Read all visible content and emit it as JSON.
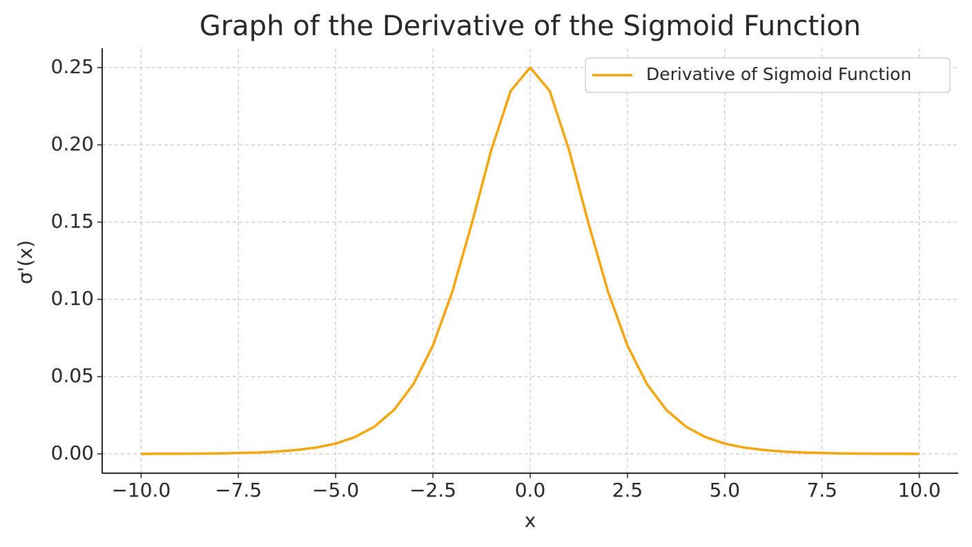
{
  "chart_data": {
    "type": "line",
    "title": "Graph of the Derivative of the Sigmoid Function",
    "xlabel": "x",
    "ylabel": "σ'(x)",
    "x": [
      -10,
      -9.5,
      -9,
      -8.5,
      -8,
      -7.5,
      -7,
      -6.5,
      -6,
      -5.5,
      -5,
      -4.5,
      -4,
      -3.5,
      -3,
      -2.5,
      -2,
      -1.5,
      -1,
      -0.5,
      0,
      0.5,
      1,
      1.5,
      2,
      2.5,
      3,
      3.5,
      4,
      4.5,
      5,
      5.5,
      6,
      6.5,
      7,
      7.5,
      8,
      8.5,
      9,
      9.5,
      10
    ],
    "series": [
      {
        "name": "Derivative of Sigmoid Function",
        "color": "#f5a40c",
        "values": [
          0.0,
          0.0001,
          0.0001,
          0.0002,
          0.0003,
          0.0006,
          0.0009,
          0.0015,
          0.0025,
          0.0041,
          0.0066,
          0.0109,
          0.0177,
          0.0284,
          0.0452,
          0.0701,
          0.105,
          0.1491,
          0.1966,
          0.235,
          0.25,
          0.235,
          0.1966,
          0.1491,
          0.105,
          0.0701,
          0.0452,
          0.0284,
          0.0177,
          0.0109,
          0.0066,
          0.0041,
          0.0025,
          0.0015,
          0.0009,
          0.0006,
          0.0003,
          0.0002,
          0.0001,
          0.0001,
          0.0
        ]
      }
    ],
    "xlim": [
      -11,
      11
    ],
    "ylim": [
      -0.0125,
      0.2625
    ],
    "xticks": [
      {
        "value": -10,
        "label": "−10.0"
      },
      {
        "value": -7.5,
        "label": "−7.5"
      },
      {
        "value": -5,
        "label": "−5.0"
      },
      {
        "value": -2.5,
        "label": "−2.5"
      },
      {
        "value": 0,
        "label": "0.0"
      },
      {
        "value": 2.5,
        "label": "2.5"
      },
      {
        "value": 5,
        "label": "5.0"
      },
      {
        "value": 7.5,
        "label": "7.5"
      },
      {
        "value": 10,
        "label": "10.0"
      }
    ],
    "yticks": [
      {
        "value": 0,
        "label": "0.00"
      },
      {
        "value": 0.05,
        "label": "0.05"
      },
      {
        "value": 0.1,
        "label": "0.10"
      },
      {
        "value": 0.15,
        "label": "0.15"
      },
      {
        "value": 0.2,
        "label": "0.20"
      },
      {
        "value": 0.25,
        "label": "0.25"
      }
    ],
    "grid": true,
    "legend": "upper right"
  }
}
